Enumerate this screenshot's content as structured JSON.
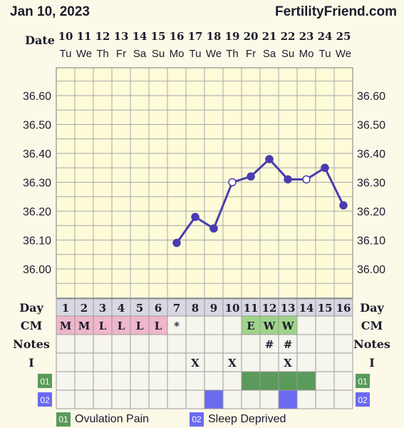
{
  "header": {
    "date": "Jan 10, 2023",
    "site": "FertilityFriend.com"
  },
  "row_labels": {
    "date": "Date",
    "day": "Day",
    "cm": "CM",
    "notes": "Notes",
    "intercourse": "I"
  },
  "dates": [
    {
      "day": "10",
      "weekday": "Tu"
    },
    {
      "day": "11",
      "weekday": "We"
    },
    {
      "day": "12",
      "weekday": "Th"
    },
    {
      "day": "13",
      "weekday": "Fr"
    },
    {
      "day": "14",
      "weekday": "Sa"
    },
    {
      "day": "15",
      "weekday": "Su"
    },
    {
      "day": "16",
      "weekday": "Mo"
    },
    {
      "day": "17",
      "weekday": "Tu"
    },
    {
      "day": "18",
      "weekday": "We"
    },
    {
      "day": "19",
      "weekday": "Th"
    },
    {
      "day": "20",
      "weekday": "Fr"
    },
    {
      "day": "21",
      "weekday": "Sa"
    },
    {
      "day": "22",
      "weekday": "Su"
    },
    {
      "day": "23",
      "weekday": "Mo"
    },
    {
      "day": "24",
      "weekday": "Tu"
    },
    {
      "day": "25",
      "weekday": "We"
    }
  ],
  "cycle_days": [
    "1",
    "2",
    "3",
    "4",
    "5",
    "6",
    "7",
    "8",
    "9",
    "10",
    "11",
    "12",
    "13",
    "14",
    "15",
    "16"
  ],
  "cm": [
    "M",
    "M",
    "L",
    "L",
    "L",
    "L",
    "*",
    "",
    "",
    "",
    "E",
    "W",
    "W",
    "",
    "",
    ""
  ],
  "cm_colors": {
    "menstruation": "#f0b6cc",
    "egg_white": "#9fd48a"
  },
  "cm_highlight": [
    "menstruation",
    "menstruation",
    "menstruation",
    "menstruation",
    "menstruation",
    "menstruation",
    "",
    "",
    "",
    "",
    "egg_white",
    "egg_white",
    "egg_white",
    "",
    "",
    ""
  ],
  "notes": [
    "",
    "",
    "",
    "",
    "",
    "",
    "",
    "",
    "",
    "",
    "",
    "#",
    "#",
    "",
    "",
    ""
  ],
  "intercourse": [
    "",
    "",
    "",
    "",
    "",
    "",
    "",
    "X",
    "",
    "X",
    "",
    "",
    "X",
    "",
    "",
    ""
  ],
  "custom_rows": [
    {
      "code": "01",
      "label": "Ovulation Pain",
      "color": "#5a9a5a",
      "days": [
        false,
        false,
        false,
        false,
        false,
        false,
        false,
        false,
        false,
        false,
        true,
        true,
        true,
        true,
        false,
        false
      ]
    },
    {
      "code": "02",
      "label": "Sleep Deprived",
      "color": "#6a6af0",
      "days": [
        false,
        false,
        false,
        false,
        false,
        false,
        false,
        false,
        true,
        false,
        false,
        false,
        true,
        false,
        false,
        false
      ]
    }
  ],
  "chart_data": {
    "type": "line",
    "x": [
      "1",
      "2",
      "3",
      "4",
      "5",
      "6",
      "7",
      "8",
      "9",
      "10",
      "11",
      "12",
      "13",
      "14",
      "15",
      "16"
    ],
    "series": [
      {
        "values": [
          null,
          null,
          null,
          null,
          null,
          null,
          36.09,
          36.18,
          36.14,
          36.3,
          36.32,
          36.38,
          36.31,
          36.31,
          36.35,
          36.22
        ]
      }
    ],
    "open_points": [
      9,
      13
    ],
    "y_ticks": [
      "36.60",
      "36.50",
      "36.40",
      "36.30",
      "36.20",
      "36.10",
      "36.00"
    ],
    "ylim": [
      35.9,
      36.7
    ],
    "line_color": "#4a3cb0",
    "grid": true
  }
}
